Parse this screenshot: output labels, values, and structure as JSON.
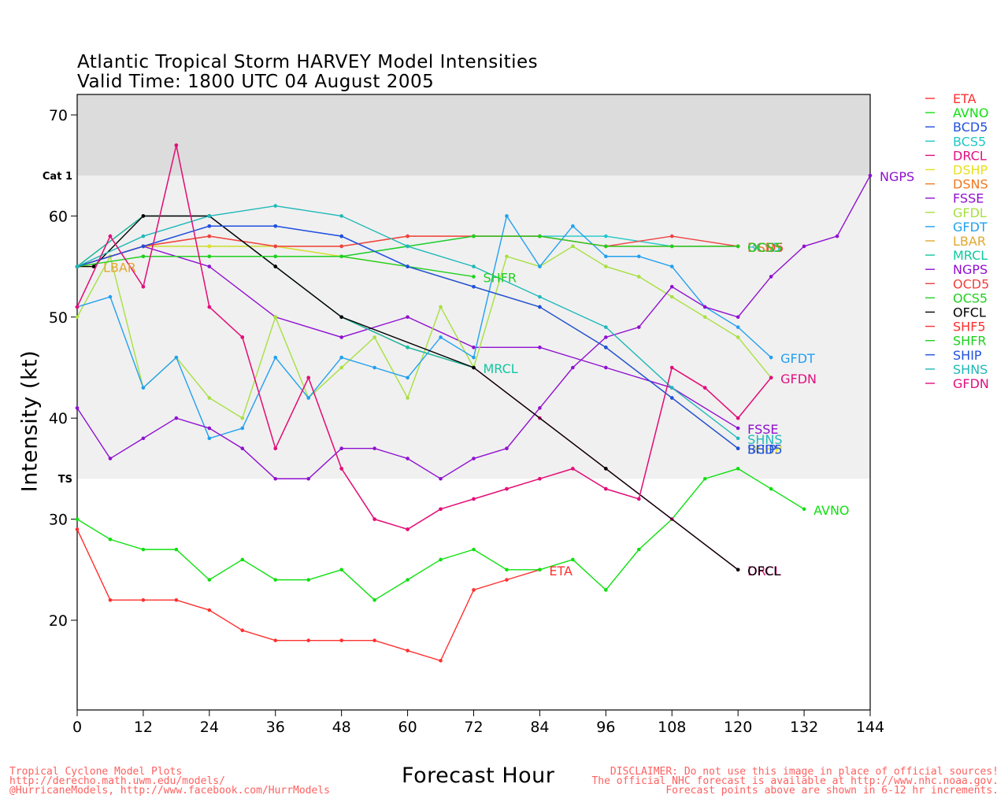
{
  "header": {
    "title_line1": "Atlantic Tropical Storm HARVEY Model Intensities",
    "title_line2": "Valid Time: 1800 UTC 04 August 2005"
  },
  "footer": {
    "left_lines": [
      "Tropical Cyclone Model Plots",
      "http://derecho.math.uwm.edu/models/",
      "@HurricaneModels, http://www.facebook.com/HurrModels"
    ],
    "right_lines": [
      "DISCLAIMER: Do not use this image in place of official sources!",
      "The official NHC forecast is available at http://www.nhc.noaa.gov.",
      "Forecast points above are shown in 6-12 hr increments."
    ]
  },
  "colors": {
    "background": "#ffffff",
    "hurricane_band": "#dcdcdc",
    "ts_band": "#f0f0f0"
  },
  "chart_data": {
    "type": "line",
    "xlabel": "Forecast Hour",
    "ylabel": "Intensity (kt)",
    "xlim": [
      0,
      144
    ],
    "ylim": [
      11,
      72
    ],
    "x_ticks": [
      0,
      12,
      24,
      36,
      48,
      60,
      72,
      84,
      96,
      108,
      120,
      132,
      144
    ],
    "y_ticks": [
      20,
      30,
      40,
      50,
      60,
      70
    ],
    "thresholds": [
      {
        "label": "TS",
        "value": 34
      },
      {
        "label": "Cat 1",
        "value": 64
      }
    ],
    "legend_position": "right",
    "series": [
      {
        "name": "ETA",
        "color": "#ff3030",
        "x": [
          0,
          6,
          12,
          18,
          24,
          30,
          36,
          42,
          48,
          54,
          60,
          66,
          72,
          78,
          84
        ],
        "y": [
          29,
          22,
          22,
          22,
          21,
          19,
          18,
          18,
          18,
          18,
          17,
          16,
          23,
          24,
          25
        ]
      },
      {
        "name": "AVNO",
        "color": "#10e010",
        "x": [
          0,
          6,
          12,
          18,
          24,
          30,
          36,
          42,
          48,
          54,
          60,
          66,
          72,
          78,
          84,
          90,
          96,
          102,
          108,
          114,
          120,
          126,
          132
        ],
        "y": [
          30,
          28,
          27,
          27,
          24,
          26,
          24,
          24,
          25,
          22,
          24,
          26,
          27,
          25,
          25,
          26,
          23,
          27,
          30,
          34,
          35,
          33,
          31
        ]
      },
      {
        "name": "BCD5",
        "color": "#2050e0",
        "x": [
          0,
          12,
          24,
          36,
          48,
          60,
          72,
          84,
          96,
          108,
          120
        ],
        "y": [
          55,
          57,
          59,
          59,
          58,
          55,
          53,
          51,
          47,
          42,
          37
        ]
      },
      {
        "name": "BCS5",
        "color": "#20c8c8",
        "x": [
          0,
          12,
          24,
          36,
          48,
          60,
          72,
          84,
          96,
          108,
          120
        ],
        "y": [
          55,
          57,
          57,
          57,
          56,
          57,
          58,
          58,
          58,
          57,
          57
        ]
      },
      {
        "name": "DRCL",
        "color": "#e01080",
        "x": [
          0,
          12,
          24,
          36,
          48,
          60,
          72,
          84,
          96,
          108,
          120
        ],
        "y": [
          55,
          60,
          60,
          55,
          50,
          47,
          45,
          40,
          35,
          30,
          25
        ]
      },
      {
        "name": "DSHP",
        "color": "#e8e020",
        "x": [
          0,
          12,
          24,
          36,
          48,
          60,
          72,
          84,
          96,
          108,
          120
        ],
        "y": [
          55,
          57,
          57,
          57,
          56,
          55,
          53,
          51,
          47,
          42,
          37
        ]
      },
      {
        "name": "DSNS",
        "color": "#f07820",
        "x": [
          0,
          12,
          24,
          36,
          48,
          60,
          72,
          84,
          96,
          108,
          120
        ],
        "y": [
          55,
          57,
          58,
          57,
          57,
          58,
          58,
          58,
          57,
          57,
          57
        ]
      },
      {
        "name": "FSSE",
        "color": "#9010d0",
        "x": [
          0,
          12,
          24,
          36,
          48,
          60,
          72,
          84,
          96,
          108,
          120
        ],
        "y": [
          55,
          57,
          55,
          50,
          48,
          50,
          47,
          47,
          45,
          43,
          39
        ]
      },
      {
        "name": "GFDL",
        "color": "#a8e040",
        "x": [
          0,
          6,
          12,
          18,
          24,
          30,
          36,
          42,
          48,
          54,
          60,
          66,
          72,
          78,
          84,
          90,
          96,
          102,
          108,
          114,
          120,
          126
        ],
        "y": [
          50,
          56,
          43,
          46,
          42,
          40,
          50,
          42,
          45,
          48,
          42,
          51,
          45,
          56,
          55,
          57,
          55,
          54,
          52,
          50,
          48,
          44
        ]
      },
      {
        "name": "GFDT",
        "color": "#20a0f0",
        "x": [
          0,
          6,
          12,
          18,
          24,
          30,
          36,
          42,
          48,
          54,
          60,
          66,
          72,
          78,
          84,
          90,
          96,
          102,
          108,
          114,
          120,
          126
        ],
        "y": [
          51,
          52,
          43,
          46,
          38,
          39,
          46,
          42,
          46,
          45,
          44,
          48,
          46,
          60,
          55,
          59,
          56,
          56,
          55,
          51,
          49,
          46
        ]
      },
      {
        "name": "LBAR",
        "color": "#e0a830",
        "x": [
          0,
          3
        ],
        "y": [
          55,
          55
        ]
      },
      {
        "name": "MRCL",
        "color": "#10c8a0",
        "x": [
          0,
          12,
          24,
          36,
          48,
          60,
          72
        ],
        "y": [
          55,
          60,
          60,
          55,
          50,
          47,
          45
        ]
      },
      {
        "name": "NGPS",
        "color": "#9010d0",
        "x": [
          0,
          6,
          12,
          18,
          24,
          30,
          36,
          42,
          48,
          54,
          60,
          66,
          72,
          78,
          84,
          90,
          96,
          102,
          108,
          114,
          120,
          126,
          132,
          138,
          144
        ],
        "y": [
          41,
          36,
          38,
          40,
          39,
          37,
          34,
          34,
          37,
          37,
          36,
          34,
          36,
          37,
          41,
          45,
          48,
          49,
          53,
          51,
          50,
          54,
          57,
          58,
          64
        ]
      },
      {
        "name": "OCD5",
        "color": "#f04040",
        "x": [
          0,
          12,
          24,
          36,
          48,
          60,
          72,
          84,
          96,
          108,
          120
        ],
        "y": [
          55,
          57,
          58,
          57,
          57,
          58,
          58,
          58,
          57,
          58,
          57
        ]
      },
      {
        "name": "OCS5",
        "color": "#20d020",
        "x": [
          12,
          24,
          36,
          48,
          60,
          72,
          84,
          96,
          108,
          120
        ],
        "y": [
          56,
          56,
          56,
          56,
          57,
          58,
          58,
          57,
          57,
          57
        ]
      },
      {
        "name": "OFCL",
        "color": "#000000",
        "x": [
          0,
          3,
          12,
          24,
          36,
          48,
          72,
          96,
          120
        ],
        "y": [
          55,
          55,
          60,
          60,
          55,
          50,
          45,
          35,
          25
        ]
      },
      {
        "name": "SHF5",
        "color": "#ff3030",
        "x": [
          0,
          6,
          12,
          18,
          24,
          30,
          36,
          42,
          48,
          54,
          60,
          66,
          72,
          78,
          84,
          90,
          96,
          102,
          108,
          114,
          120,
          126
        ],
        "y": [
          51,
          58,
          53,
          67,
          51,
          48,
          37,
          44,
          35,
          30,
          29,
          31,
          32,
          33,
          34,
          35,
          33,
          32,
          45,
          43,
          40,
          44
        ]
      },
      {
        "name": "SHFR",
        "color": "#20d020",
        "x": [
          0,
          12,
          24,
          36,
          48,
          60,
          72
        ],
        "y": [
          55,
          56,
          56,
          56,
          56,
          55,
          54
        ]
      },
      {
        "name": "SHIP",
        "color": "#2050e0",
        "x": [
          0,
          12,
          24,
          36,
          48,
          60,
          72,
          84,
          96,
          108,
          120
        ],
        "y": [
          55,
          57,
          59,
          59,
          58,
          55,
          53,
          51,
          47,
          42,
          37
        ]
      },
      {
        "name": "SHNS",
        "color": "#20b8b8",
        "x": [
          0,
          12,
          24,
          36,
          48,
          60,
          72,
          84,
          96,
          108,
          120
        ],
        "y": [
          55,
          58,
          60,
          61,
          60,
          57,
          55,
          52,
          49,
          43,
          38
        ]
      },
      {
        "name": "GFDN",
        "color": "#e01080",
        "x": [
          0,
          6,
          12,
          18,
          24,
          30,
          36,
          42,
          48,
          54,
          60,
          66,
          72,
          78,
          84,
          90,
          96,
          102,
          108,
          114,
          120,
          126
        ],
        "y": [
          51,
          58,
          53,
          67,
          51,
          48,
          37,
          44,
          35,
          30,
          29,
          31,
          32,
          33,
          34,
          35,
          33,
          32,
          45,
          43,
          40,
          44
        ]
      }
    ],
    "end_labels": [
      {
        "text": "LBAR",
        "series": "LBAR"
      },
      {
        "text": "SHFR",
        "series": "SHFR"
      },
      {
        "text": "MRCL",
        "series": "MRCL"
      },
      {
        "text": "ETA",
        "series": "ETA"
      },
      {
        "text": "AVNO",
        "series": "AVNO"
      },
      {
        "text": "NGPS",
        "series": "NGPS"
      },
      {
        "text": "GFDT",
        "series": "GFDT"
      },
      {
        "text": "GFDN",
        "series": "GFDN"
      },
      {
        "text": "DRCL",
        "series": "DRCL"
      },
      {
        "text": "OFCL",
        "series": "OFCL"
      },
      {
        "text": "FSSE",
        "series": "FSSE"
      },
      {
        "text": "SHNS",
        "series": "SHNS"
      },
      {
        "text": "DSHP",
        "series": "DSHP"
      },
      {
        "text": "SHIP",
        "series": "SHIP"
      },
      {
        "text": "BCS5",
        "series": "BCS5"
      },
      {
        "text": "BCD5",
        "series": "BCD5"
      },
      {
        "text": "DSNS",
        "series": "DSNS"
      },
      {
        "text": "OCD5",
        "series": "OCD5"
      },
      {
        "text": "OCS5",
        "series": "OCS5"
      }
    ]
  }
}
